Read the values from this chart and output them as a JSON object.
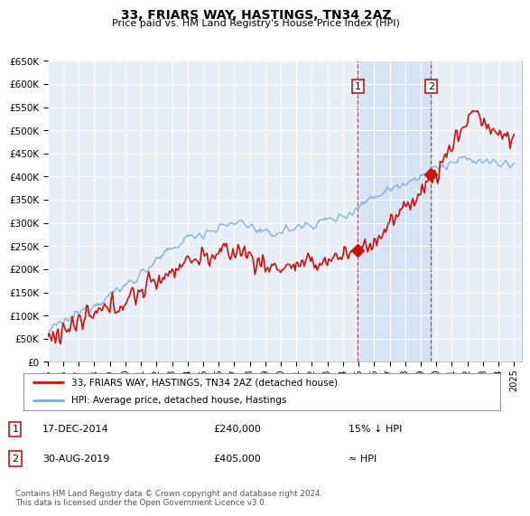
{
  "title": "33, FRIARS WAY, HASTINGS, TN34 2AZ",
  "subtitle": "Price paid vs. HM Land Registry's House Price Index (HPI)",
  "ylabel_values": [
    "£0",
    "£50K",
    "£100K",
    "£150K",
    "£200K",
    "£250K",
    "£300K",
    "£350K",
    "£400K",
    "£450K",
    "£500K",
    "£550K",
    "£600K",
    "£650K"
  ],
  "ylim": [
    0,
    650000
  ],
  "yticks": [
    0,
    50000,
    100000,
    150000,
    200000,
    250000,
    300000,
    350000,
    400000,
    450000,
    500000,
    550000,
    600000,
    650000
  ],
  "xlim_start": 1995.0,
  "xlim_end": 2025.5,
  "bg_color": "#ffffff",
  "plot_bg_color": "#e8eef5",
  "grid_color": "#ffffff",
  "hpi_color": "#7aabdb",
  "price_color": "#cc1111",
  "shade_color": "#ccddf0",
  "shade_alpha": 0.6,
  "marker1_x": 2014.96,
  "marker1_y": 240000,
  "marker2_x": 2019.67,
  "marker2_y": 405000,
  "marker1_label": "1",
  "marker2_label": "2",
  "legend_line1": "33, FRIARS WAY, HASTINGS, TN34 2AZ (detached house)",
  "legend_line2": "HPI: Average price, detached house, Hastings",
  "ann1_date": "17-DEC-2014",
  "ann1_price": "£240,000",
  "ann1_hpi": "15% ↓ HPI",
  "ann2_date": "30-AUG-2019",
  "ann2_price": "£405,000",
  "ann2_hpi": "≈ HPI",
  "footer": "Contains HM Land Registry data © Crown copyright and database right 2024.\nThis data is licensed under the Open Government Licence v3.0."
}
